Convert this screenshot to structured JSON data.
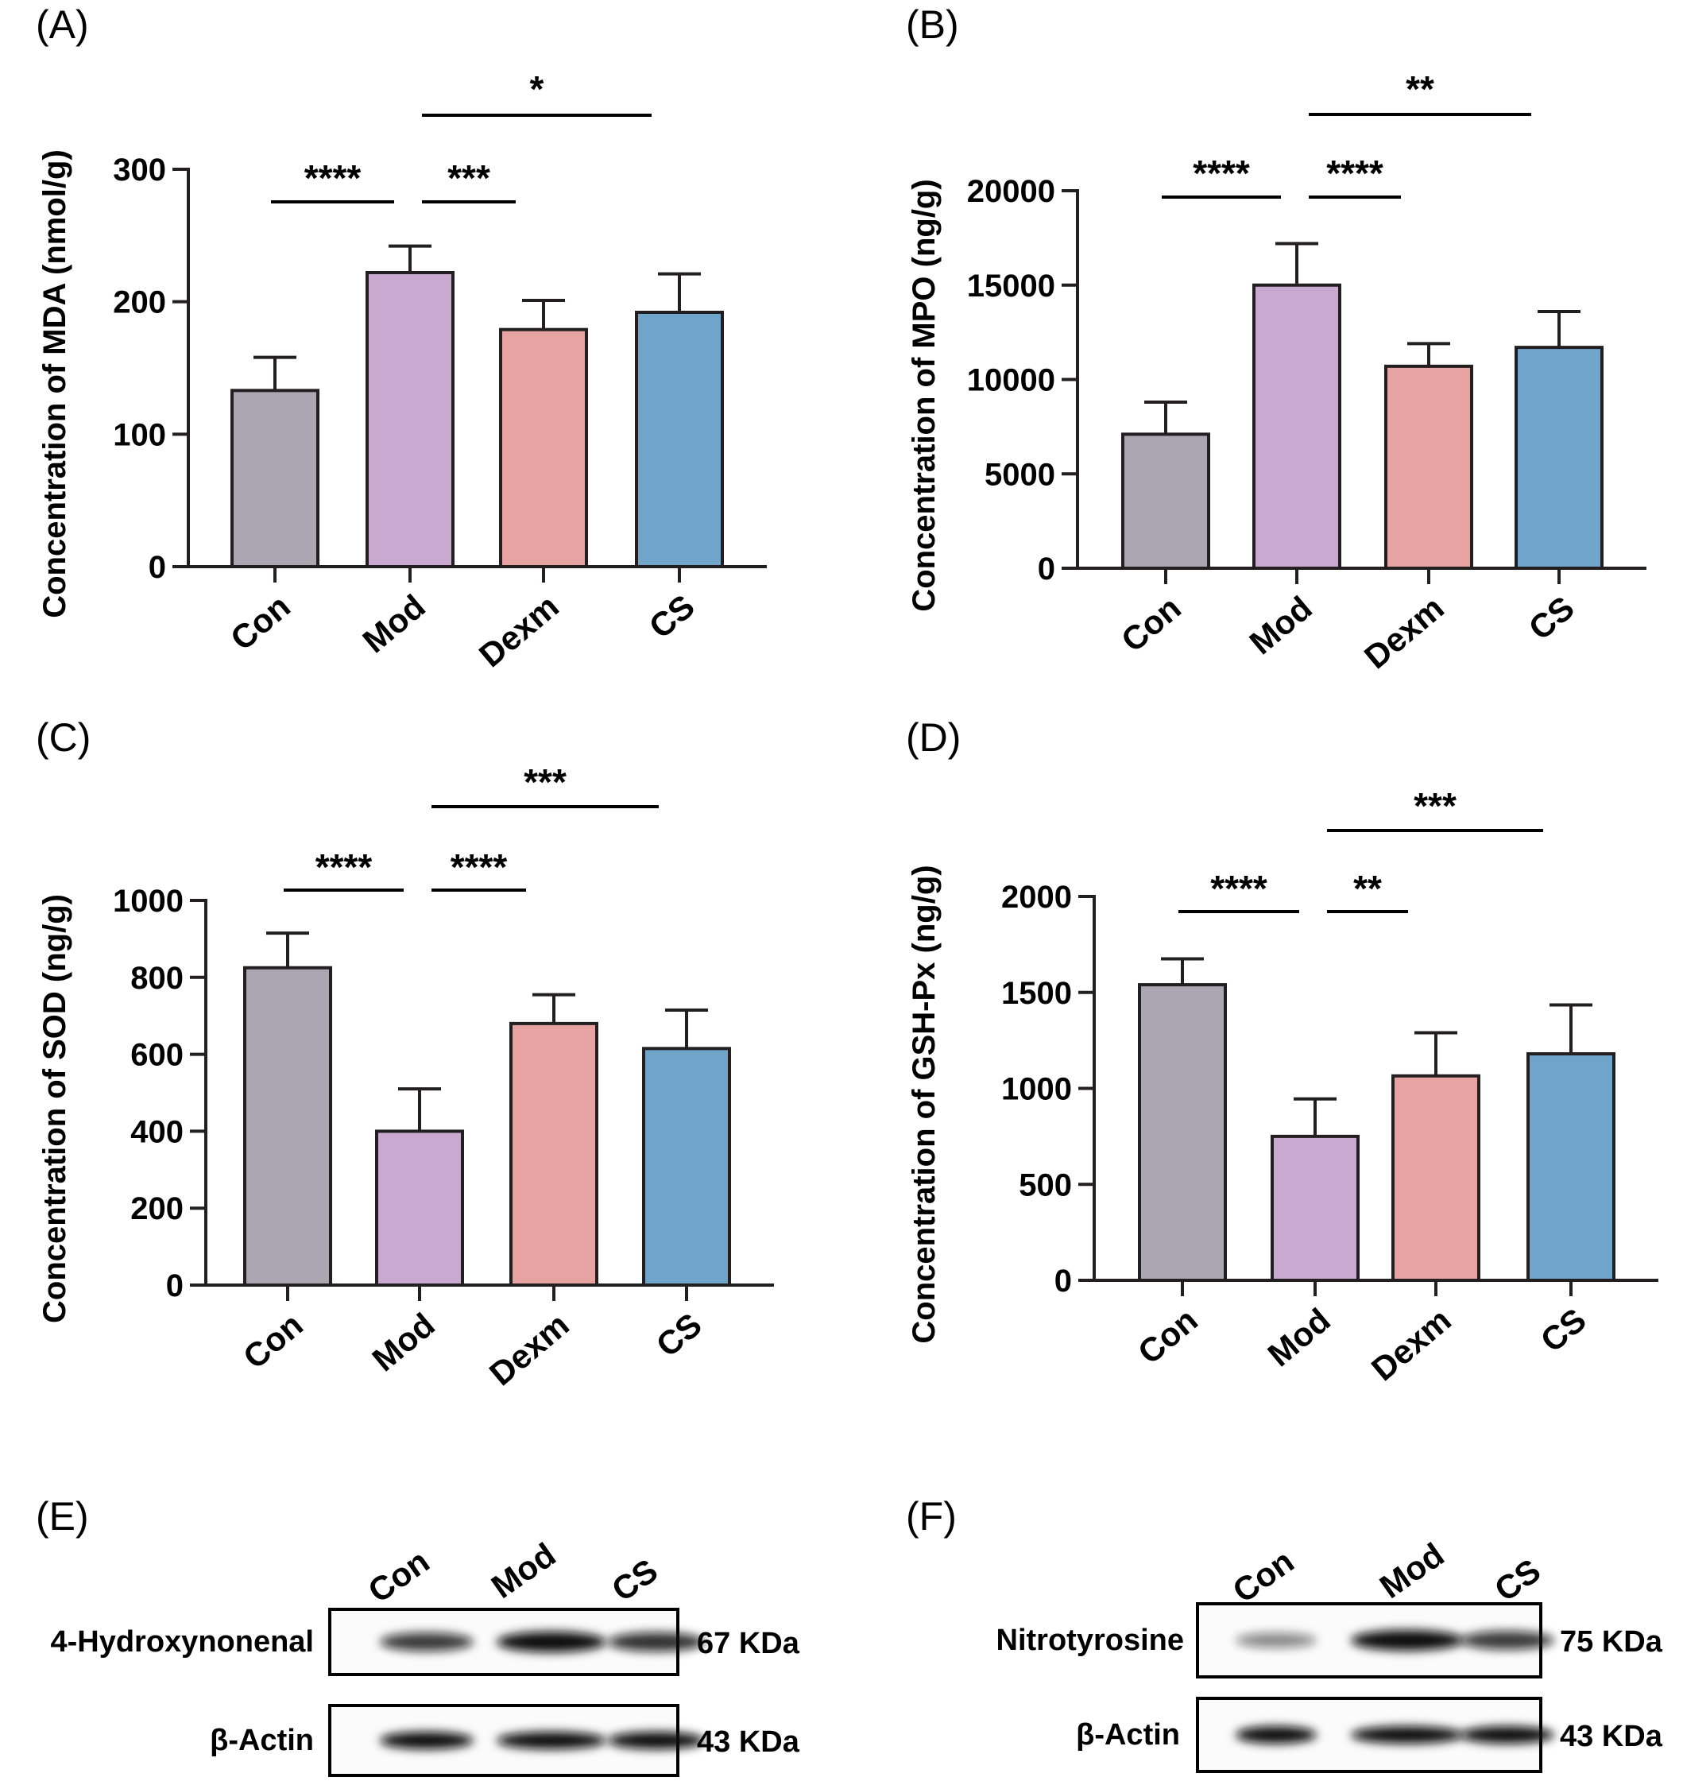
{
  "colors": {
    "Con": "#aaa6b2",
    "Mod": "#c9a9cf",
    "Dexm": "#e6a3a1",
    "CS": "#6fa5cb",
    "axis": "#231f20"
  },
  "chart_data": [
    {
      "panel": "(A)",
      "type": "bar",
      "categories": [
        "Con",
        "Mod",
        "Dexm",
        "CS"
      ],
      "values": [
        133,
        222,
        179,
        192
      ],
      "errors": [
        25,
        20,
        22,
        29
      ],
      "ylabel": "Concentration of  MDA (nmol/g)",
      "ylim": [
        0,
        300
      ],
      "yticks": [
        "0",
        "100",
        "200",
        "300"
      ],
      "ytick_values": [
        0,
        100,
        200,
        300
      ],
      "significance": [
        {
          "from": "Con",
          "to": "Mod",
          "label": "****"
        },
        {
          "from": "Mod",
          "to": "Dexm",
          "label": "***"
        },
        {
          "from": "Mod",
          "to": "CS",
          "label": "*"
        }
      ]
    },
    {
      "panel": "(B)",
      "type": "bar",
      "categories": [
        "Con",
        "Mod",
        "Dexm",
        "CS"
      ],
      "values": [
        7100,
        15000,
        10700,
        11700
      ],
      "errors": [
        1700,
        2200,
        1200,
        1900
      ],
      "ylabel": "Concentration of  MPO (ng/g)",
      "ylim": [
        0,
        20000
      ],
      "yticks": [
        "0",
        "5000",
        "10000",
        "15000",
        "20000"
      ],
      "ytick_values": [
        0,
        5000,
        10000,
        15000,
        20000
      ],
      "significance": [
        {
          "from": "Con",
          "to": "Mod",
          "label": "****"
        },
        {
          "from": "Mod",
          "to": "Dexm",
          "label": "****"
        },
        {
          "from": "Mod",
          "to": "CS",
          "label": "**"
        }
      ]
    },
    {
      "panel": "(C)",
      "type": "bar",
      "categories": [
        "Con",
        "Mod",
        "Dexm",
        "CS"
      ],
      "values": [
        825,
        400,
        680,
        615
      ],
      "errors": [
        90,
        110,
        75,
        100
      ],
      "ylabel": "Concentration of  SOD (ng/g)",
      "ylim": [
        0,
        1000
      ],
      "yticks": [
        "0",
        "200",
        "400",
        "600",
        "800",
        "1000"
      ],
      "ytick_values": [
        0,
        200,
        400,
        600,
        800,
        1000
      ],
      "significance": [
        {
          "from": "Con",
          "to": "Mod",
          "label": "****"
        },
        {
          "from": "Mod",
          "to": "Dexm",
          "label": "****"
        },
        {
          "from": "Mod",
          "to": "CS",
          "label": "***"
        }
      ]
    },
    {
      "panel": "(D)",
      "type": "bar",
      "categories": [
        "Con",
        "Mod",
        "Dexm",
        "CS"
      ],
      "values": [
        1540,
        750,
        1065,
        1180
      ],
      "errors": [
        135,
        195,
        225,
        255
      ],
      "ylabel": "Concentration of  GSH-Px (ng/g)",
      "ylim": [
        0,
        2000
      ],
      "yticks": [
        "0",
        "500",
        "1000",
        "1500",
        "2000"
      ],
      "ytick_values": [
        0,
        500,
        1000,
        1500,
        2000
      ],
      "significance": [
        {
          "from": "Con",
          "to": "Mod",
          "label": "****"
        },
        {
          "from": "Mod",
          "to": "Dexm",
          "label": "**"
        },
        {
          "from": "Mod",
          "to": "CS",
          "label": "***"
        }
      ]
    }
  ],
  "blots": [
    {
      "panel": "(E)",
      "lanes": [
        "Con",
        "Mod",
        "CS"
      ],
      "rows": [
        {
          "protein": "4-Hydroxynonenal",
          "size": "67 KDa",
          "intensity": [
            0.75,
            1.0,
            0.8
          ]
        },
        {
          "protein": "β-Actin",
          "size": "43 KDa",
          "intensity": [
            1.0,
            1.0,
            1.0
          ]
        }
      ]
    },
    {
      "panel": "(F)",
      "lanes": [
        "Con",
        "Mod",
        "CS"
      ],
      "rows": [
        {
          "protein": "Nitrotyrosine",
          "size": "75 KDa",
          "intensity": [
            0.3,
            1.0,
            0.75
          ]
        },
        {
          "protein": "β-Actin",
          "size": "43 KDa",
          "intensity": [
            1.0,
            1.0,
            1.0
          ]
        }
      ]
    }
  ]
}
